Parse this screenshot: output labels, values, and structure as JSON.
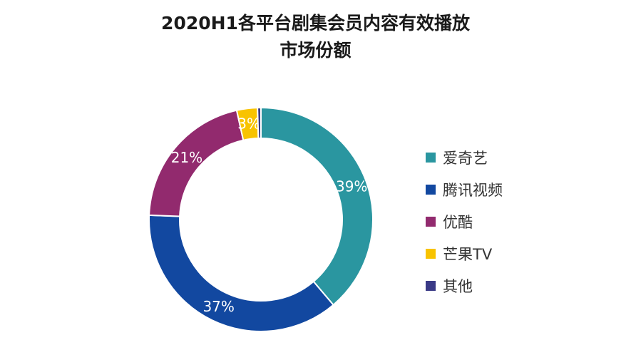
{
  "chart_data": {
    "type": "pie",
    "title": "2020H1各平台剧集会员内容有效播放",
    "subtitle": "市场份额",
    "donut": true,
    "legend_position": "right",
    "slices": [
      {
        "name": "爱奇艺",
        "value": 39,
        "label": "39%",
        "color": "#2a96a0"
      },
      {
        "name": "腾讯视频",
        "value": 37,
        "label": "37%",
        "color": "#1248a0"
      },
      {
        "name": "优酷",
        "value": 21,
        "label": "21%",
        "color": "#922a6e"
      },
      {
        "name": "芒果TV",
        "value": 3,
        "label": "3%",
        "color": "#f8c300"
      },
      {
        "name": "其他",
        "value": 0.5,
        "label": "",
        "color": "#3a3a86"
      }
    ]
  }
}
